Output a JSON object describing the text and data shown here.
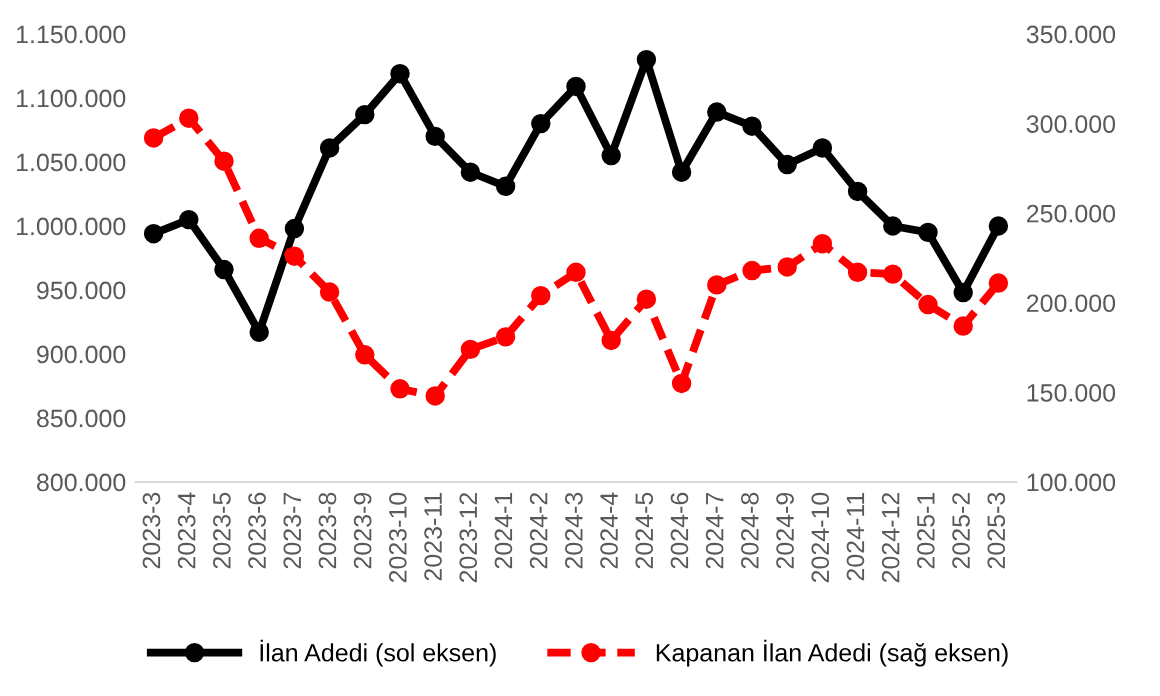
{
  "chart_data": {
    "type": "line",
    "categories": [
      "2023-3",
      "2023-4",
      "2023-5",
      "2023-6",
      "2023-7",
      "2023-8",
      "2023-9",
      "2023-10",
      "2023-11",
      "2023-12",
      "2024-1",
      "2024-2",
      "2024-3",
      "2024-4",
      "2024-5",
      "2024-6",
      "2024-7",
      "2024-8",
      "2024-9",
      "2024-10",
      "2024-11",
      "2024-12",
      "2025-1",
      "2025-2",
      "2025-3"
    ],
    "series": [
      {
        "name": "İlan Adedi (sol eksen)",
        "color": "#000000",
        "line_style": "solid",
        "values": [
          994000,
          1005000,
          966000,
          917000,
          998000,
          1061000,
          1087000,
          1119000,
          1070000,
          1042000,
          1031000,
          1080000,
          1109000,
          1055000,
          1130000,
          1042000,
          1089000,
          1078000,
          1048000,
          1061000,
          1027000,
          1000000,
          995000,
          948000,
          1000000
        ]
      },
      {
        "name": "Kapanan İlan Adedi (sağ eksen)",
        "color": "#ff0000",
        "line_style": "dashed",
        "axis": "y2",
        "values": [
          292000,
          303000,
          279000,
          236000,
          226000,
          206000,
          171000,
          152000,
          148000,
          174000,
          181000,
          204000,
          217000,
          179000,
          202000,
          155000,
          210000,
          218000,
          220000,
          233000,
          217000,
          216000,
          199000,
          187000,
          211000
        ]
      }
    ],
    "ylim": [
      800000,
      1150000
    ],
    "yticks": [
      {
        "value": 800000,
        "label": "800.000"
      },
      {
        "value": 850000,
        "label": "850.000"
      },
      {
        "value": 900000,
        "label": "900.000"
      },
      {
        "value": 950000,
        "label": "950.000"
      },
      {
        "value": 1000000,
        "label": "1.000.000"
      },
      {
        "value": 1050000,
        "label": "1.050.000"
      },
      {
        "value": 1100000,
        "label": "1.100.000"
      },
      {
        "value": 1150000,
        "label": "1.150.000"
      }
    ],
    "y2lim": [
      100000,
      350000
    ],
    "y2ticks": [
      {
        "value": 100000,
        "label": "100.000"
      },
      {
        "value": 150000,
        "label": "150.000"
      },
      {
        "value": 200000,
        "label": "200.000"
      },
      {
        "value": 250000,
        "label": "250.000"
      },
      {
        "value": 300000,
        "label": "300.000"
      },
      {
        "value": 350000,
        "label": "350.000"
      }
    ],
    "marker": "circle",
    "grid": false,
    "legend": "bottom"
  }
}
